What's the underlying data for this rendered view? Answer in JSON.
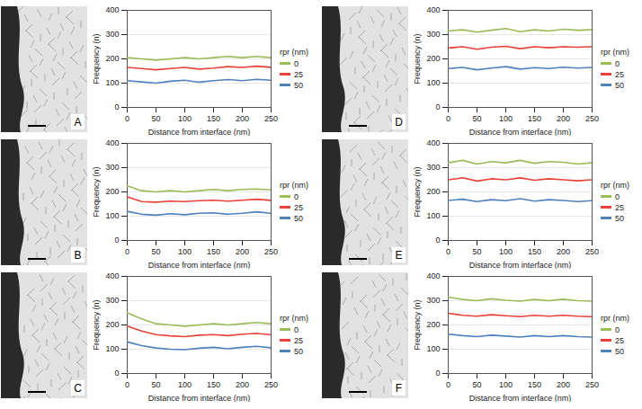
{
  "chart_data": [
    {
      "type": "line",
      "panel": "A",
      "xlabel": "Distance from interface (nm)",
      "ylabel": "Frequency (n)",
      "legend_title": "rpr (nm)",
      "legend": "right",
      "grid": true,
      "x": [
        0,
        25,
        50,
        75,
        100,
        125,
        150,
        175,
        200,
        225,
        250
      ],
      "xlim": [
        0,
        250
      ],
      "xticks": [
        0,
        50,
        100,
        150,
        200,
        250
      ],
      "ylim": [
        0,
        400
      ],
      "yticks": [
        0,
        100,
        200,
        300,
        400
      ],
      "series": [
        {
          "name": "0",
          "color": "#9bbb59",
          "values": [
            205,
            200,
            195,
            200,
            205,
            200,
            205,
            210,
            205,
            210,
            205
          ]
        },
        {
          "name": "25",
          "color": "#e8413a",
          "values": [
            165,
            160,
            155,
            160,
            165,
            158,
            162,
            168,
            165,
            170,
            165
          ]
        },
        {
          "name": "50",
          "color": "#4f81bd",
          "values": [
            110,
            105,
            100,
            108,
            112,
            104,
            110,
            115,
            110,
            116,
            112
          ]
        }
      ]
    },
    {
      "type": "line",
      "panel": "D",
      "xlabel": "Distance from interface (nm)",
      "ylabel": "Frequency (n)",
      "legend_title": "rpr (nm)",
      "legend": "right",
      "grid": true,
      "x": [
        0,
        25,
        50,
        75,
        100,
        125,
        150,
        175,
        200,
        225,
        250
      ],
      "xlim": [
        0,
        250
      ],
      "xticks": [
        0,
        50,
        100,
        150,
        200,
        250
      ],
      "ylim": [
        0,
        400
      ],
      "yticks": [
        0,
        100,
        200,
        300,
        400
      ],
      "series": [
        {
          "name": "0",
          "color": "#9bbb59",
          "values": [
            315,
            320,
            310,
            318,
            325,
            312,
            320,
            315,
            322,
            318,
            320
          ]
        },
        {
          "name": "25",
          "color": "#e8413a",
          "values": [
            245,
            250,
            240,
            248,
            252,
            242,
            250,
            246,
            250,
            248,
            250
          ]
        },
        {
          "name": "50",
          "color": "#4f81bd",
          "values": [
            160,
            165,
            155,
            162,
            168,
            158,
            164,
            160,
            166,
            162,
            165
          ]
        }
      ]
    },
    {
      "type": "line",
      "panel": "B",
      "xlabel": "Distance from interface (nm)",
      "ylabel": "Frequency (n)",
      "legend_title": "rpr (nm)",
      "legend": "right",
      "grid": true,
      "x": [
        0,
        25,
        50,
        75,
        100,
        125,
        150,
        175,
        200,
        225,
        250
      ],
      "xlim": [
        0,
        250
      ],
      "xticks": [
        0,
        50,
        100,
        150,
        200,
        250
      ],
      "ylim": [
        0,
        400
      ],
      "yticks": [
        0,
        100,
        200,
        300,
        400
      ],
      "series": [
        {
          "name": "0",
          "color": "#9bbb59",
          "values": [
            225,
            205,
            200,
            205,
            200,
            205,
            210,
            205,
            210,
            212,
            208
          ]
        },
        {
          "name": "25",
          "color": "#e8413a",
          "values": [
            180,
            160,
            158,
            162,
            160,
            164,
            166,
            162,
            166,
            170,
            165
          ]
        },
        {
          "name": "50",
          "color": "#4f81bd",
          "values": [
            120,
            108,
            104,
            110,
            106,
            112,
            114,
            108,
            112,
            118,
            112
          ]
        }
      ]
    },
    {
      "type": "line",
      "panel": "E",
      "xlabel": "Distance from interface (nm)",
      "ylabel": "Frequency (n)",
      "legend_title": "rpr (nm)",
      "legend": "right",
      "grid": true,
      "x": [
        0,
        25,
        50,
        75,
        100,
        125,
        150,
        175,
        200,
        225,
        250
      ],
      "xlim": [
        0,
        250
      ],
      "xticks": [
        0,
        50,
        100,
        150,
        200,
        250
      ],
      "ylim": [
        0,
        400
      ],
      "yticks": [
        0,
        100,
        200,
        300,
        400
      ],
      "series": [
        {
          "name": "0",
          "color": "#9bbb59",
          "values": [
            320,
            330,
            315,
            325,
            320,
            330,
            318,
            325,
            322,
            315,
            320
          ]
        },
        {
          "name": "25",
          "color": "#e8413a",
          "values": [
            250,
            258,
            245,
            254,
            250,
            258,
            248,
            254,
            250,
            246,
            250
          ]
        },
        {
          "name": "50",
          "color": "#4f81bd",
          "values": [
            165,
            170,
            160,
            168,
            164,
            172,
            162,
            168,
            165,
            160,
            164
          ]
        }
      ]
    },
    {
      "type": "line",
      "panel": "C",
      "xlabel": "Distance from interface (nm)",
      "ylabel": "Frequency (n)",
      "legend_title": "rpr (nm)",
      "legend": "right",
      "grid": true,
      "x": [
        0,
        25,
        50,
        75,
        100,
        125,
        150,
        175,
        200,
        225,
        250
      ],
      "xlim": [
        0,
        250
      ],
      "xticks": [
        0,
        50,
        100,
        150,
        200,
        250
      ],
      "ylim": [
        0,
        400
      ],
      "yticks": [
        0,
        100,
        200,
        300,
        400
      ],
      "series": [
        {
          "name": "0",
          "color": "#9bbb59",
          "values": [
            250,
            225,
            205,
            200,
            195,
            200,
            205,
            200,
            205,
            210,
            205
          ]
        },
        {
          "name": "25",
          "color": "#e8413a",
          "values": [
            195,
            175,
            160,
            155,
            152,
            158,
            160,
            156,
            162,
            165,
            160
          ]
        },
        {
          "name": "50",
          "color": "#4f81bd",
          "values": [
            130,
            115,
            105,
            100,
            98,
            104,
            108,
            102,
            108,
            112,
            106
          ]
        }
      ]
    },
    {
      "type": "line",
      "panel": "F",
      "xlabel": "Distance from interface (nm)",
      "ylabel": "Frequency (n)",
      "legend_title": "rpr (nm)",
      "legend": "right",
      "grid": true,
      "x": [
        0,
        25,
        50,
        75,
        100,
        125,
        150,
        175,
        200,
        225,
        250
      ],
      "xlim": [
        0,
        250
      ],
      "xticks": [
        0,
        50,
        100,
        150,
        200,
        250
      ],
      "ylim": [
        0,
        400
      ],
      "yticks": [
        0,
        100,
        200,
        300,
        400
      ],
      "series": [
        {
          "name": "0",
          "color": "#9bbb59",
          "values": [
            315,
            305,
            300,
            308,
            302,
            298,
            305,
            300,
            306,
            300,
            298
          ]
        },
        {
          "name": "25",
          "color": "#e8413a",
          "values": [
            248,
            240,
            236,
            242,
            238,
            234,
            240,
            236,
            240,
            236,
            234
          ]
        },
        {
          "name": "50",
          "color": "#4f81bd",
          "values": [
            162,
            156,
            152,
            158,
            154,
            150,
            156,
            152,
            156,
            152,
            150
          ]
        }
      ]
    }
  ]
}
